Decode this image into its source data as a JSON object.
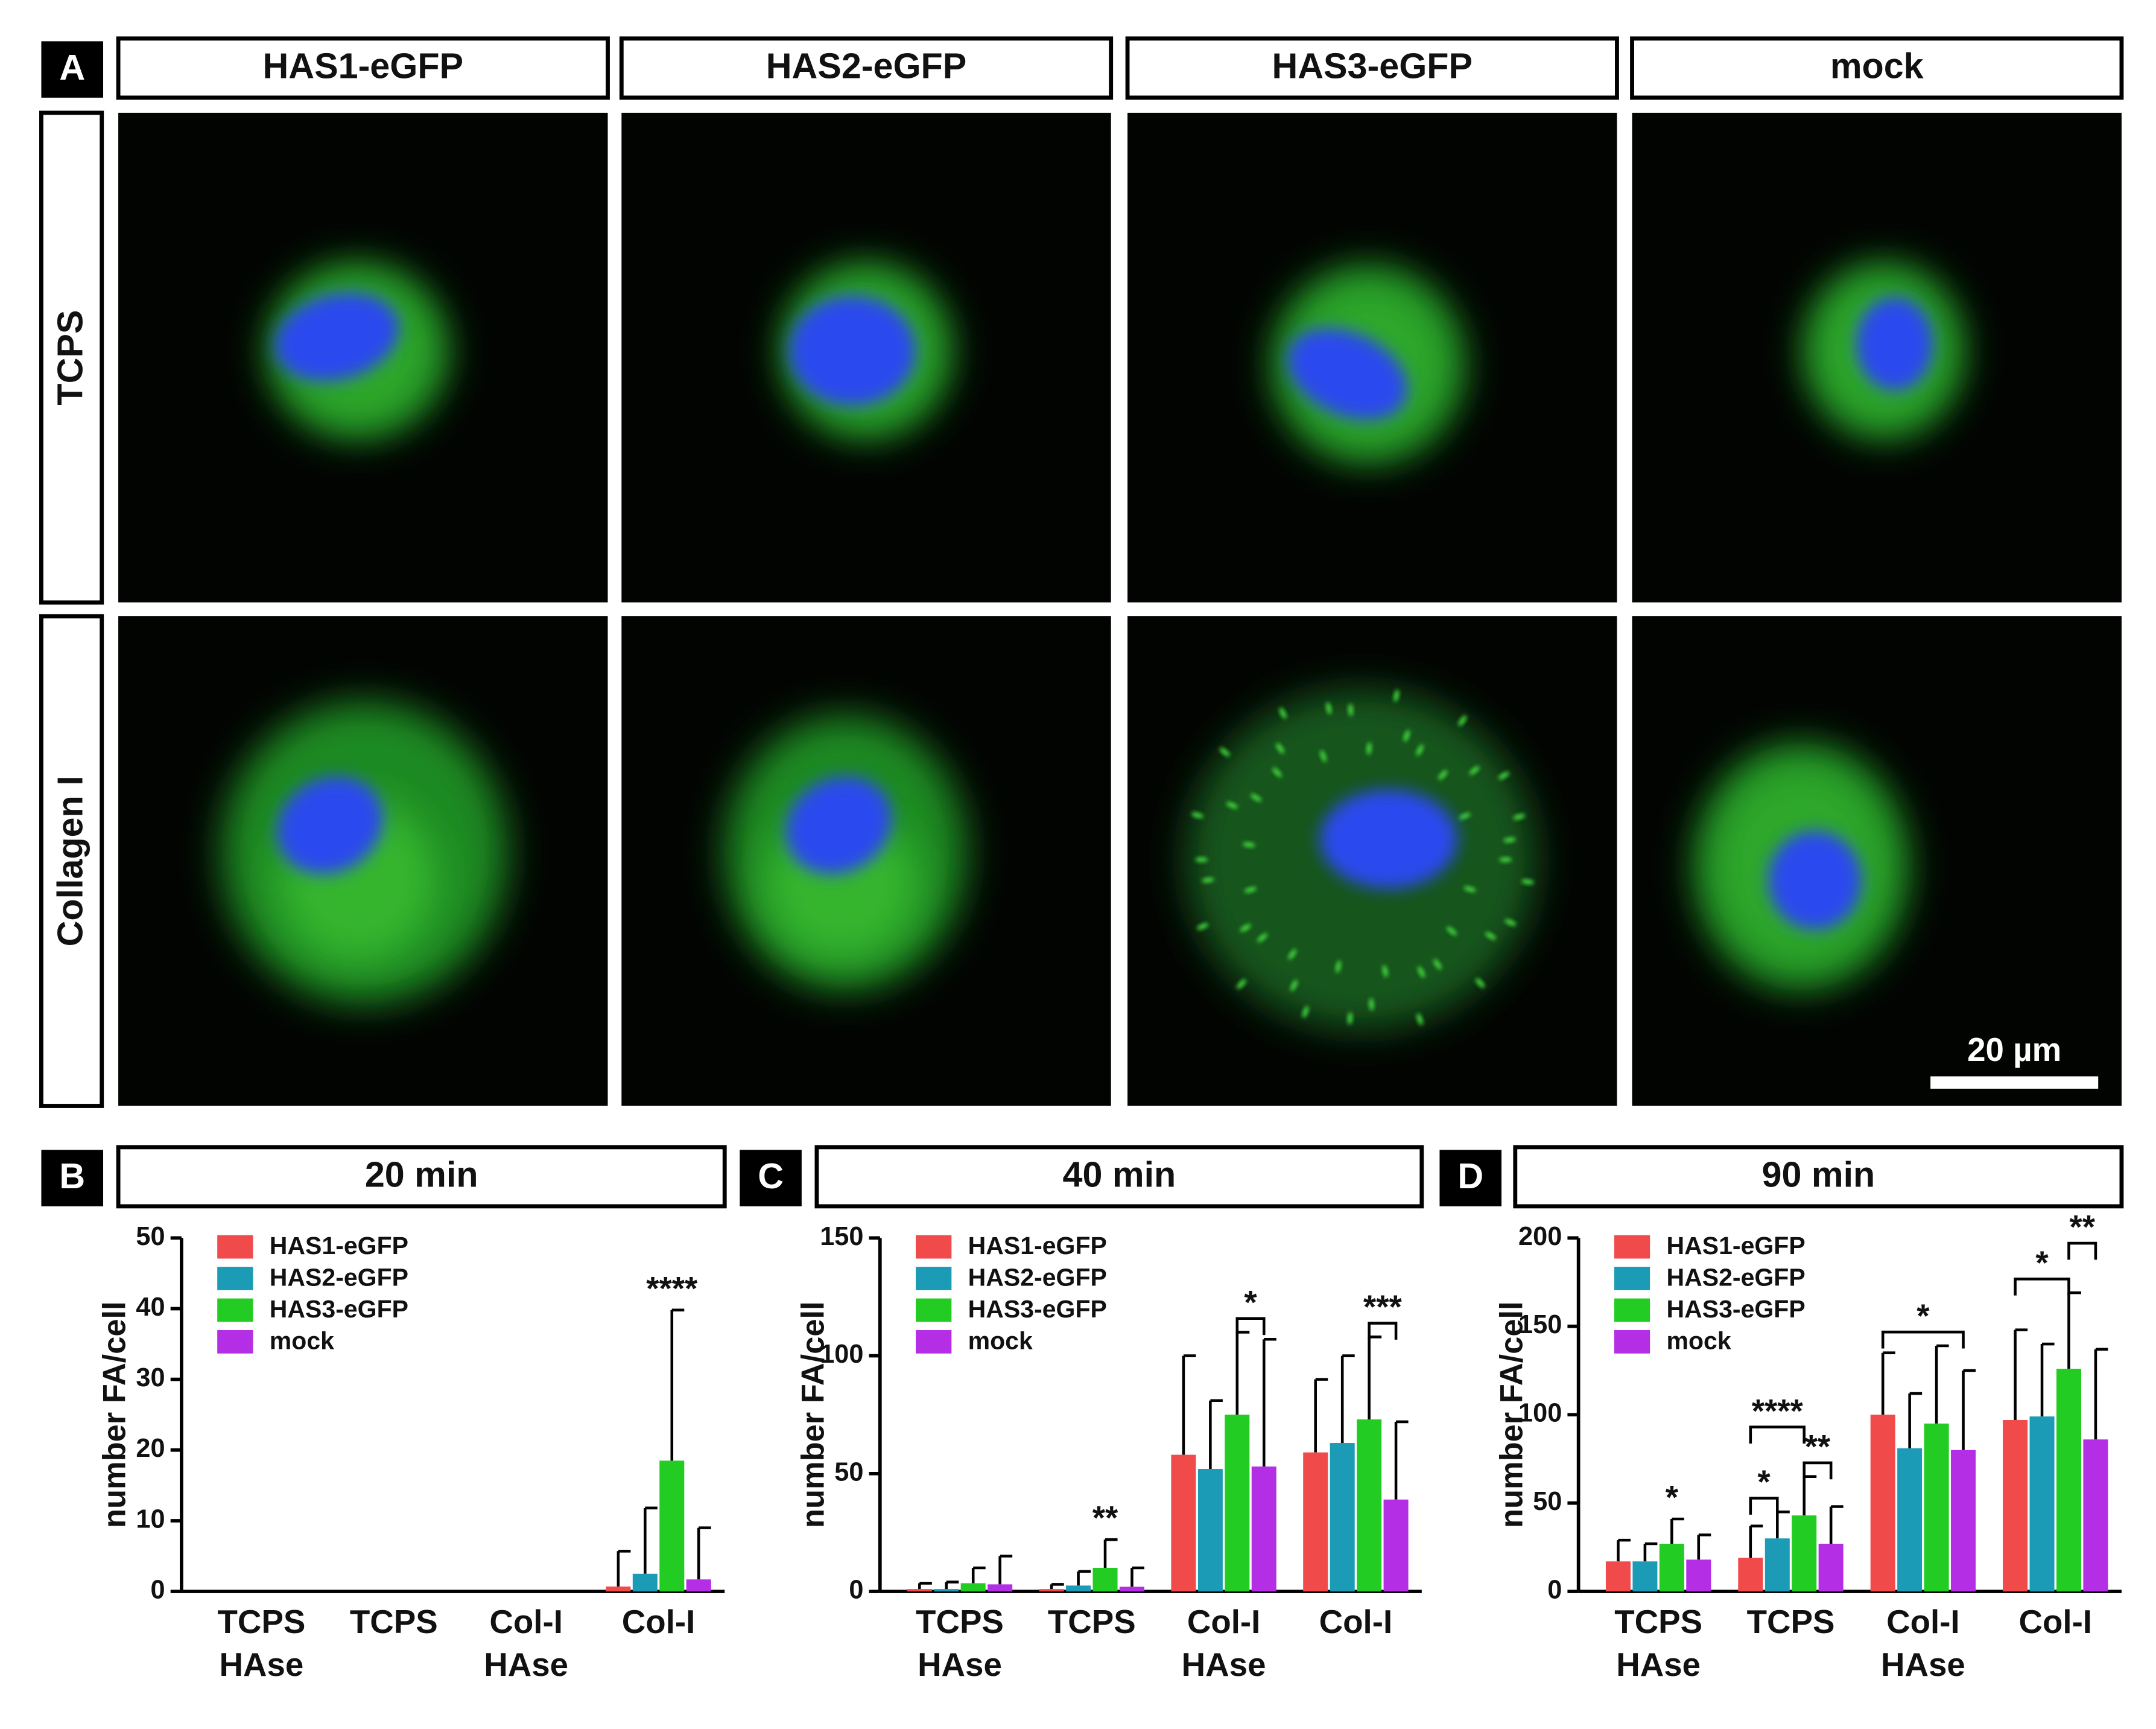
{
  "panel_a": {
    "label": "A",
    "columns": [
      "HAS1-eGFP",
      "HAS2-eGFP",
      "HAS3-eGFP",
      "mock"
    ],
    "rows": [
      "TCPS",
      "Collagen I"
    ],
    "scale_bar": "20 µm"
  },
  "chart_data": [
    {
      "type": "bar",
      "panel": "B",
      "title": "20 min",
      "y_label": "number FA/cell",
      "categories": [
        [
          "TCPS",
          "HAse"
        ],
        [
          "TCPS"
        ],
        [
          "Col-I",
          "HAse"
        ],
        [
          "Col-I"
        ]
      ],
      "ylim": [
        0,
        50
      ],
      "yticks": [
        0,
        10,
        20,
        30,
        40,
        50
      ],
      "series": [
        {
          "name": "HAS1-eGFP",
          "color": "#f04a4a",
          "values": [
            0,
            0,
            0,
            0.7
          ],
          "errors": [
            0,
            0,
            0,
            5
          ]
        },
        {
          "name": "HAS2-eGFP",
          "color": "#1b9bb5",
          "values": [
            0,
            0,
            0,
            2.5
          ],
          "errors": [
            0,
            0,
            0,
            9.3
          ]
        },
        {
          "name": "HAS3-eGFP",
          "color": "#22cc22",
          "values": [
            0,
            0,
            0,
            18.5
          ],
          "errors": [
            0,
            0,
            0,
            21.3
          ]
        },
        {
          "name": "mock",
          "color": "#b42ee6",
          "values": [
            0,
            0,
            0,
            1.7
          ],
          "errors": [
            0,
            0,
            0,
            7.3
          ]
        }
      ],
      "annotations": [
        {
          "text": "****",
          "category": 3,
          "from": 2,
          "to": 2
        }
      ]
    },
    {
      "type": "bar",
      "panel": "C",
      "title": "40 min",
      "y_label": "number FA/cell",
      "categories": [
        [
          "TCPS",
          "HAse"
        ],
        [
          "TCPS"
        ],
        [
          "Col-I",
          "HAse"
        ],
        [
          "Col-I"
        ]
      ],
      "ylim": [
        0,
        150
      ],
      "yticks": [
        0,
        50,
        100,
        150
      ],
      "series": [
        {
          "name": "HAS1-eGFP",
          "color": "#f04a4a",
          "values": [
            1,
            1,
            58,
            59
          ],
          "errors": [
            2.5,
            2,
            42,
            31
          ]
        },
        {
          "name": "HAS2-eGFP",
          "color": "#1b9bb5",
          "values": [
            1,
            2.5,
            52,
            63
          ],
          "errors": [
            3,
            6,
            29,
            37
          ]
        },
        {
          "name": "HAS3-eGFP",
          "color": "#22cc22",
          "values": [
            3.5,
            10,
            75,
            73
          ],
          "errors": [
            6.5,
            12,
            35,
            35
          ]
        },
        {
          "name": "mock",
          "color": "#b42ee6",
          "values": [
            3,
            2,
            53,
            39
          ],
          "errors": [
            12,
            8,
            54,
            33
          ]
        }
      ],
      "annotations": [
        {
          "text": "**",
          "category": 1,
          "from": 2,
          "to": 2
        },
        {
          "text": "*",
          "category": 2,
          "from": 2,
          "to": 3
        },
        {
          "text": "***",
          "category": 3,
          "from": 2,
          "to": 3
        }
      ]
    },
    {
      "type": "bar",
      "panel": "D",
      "title": "90 min",
      "y_label": "number FA/cell",
      "categories": [
        [
          "TCPS",
          "HAse"
        ],
        [
          "TCPS"
        ],
        [
          "Col-I",
          "HAse"
        ],
        [
          "Col-I"
        ]
      ],
      "ylim": [
        0,
        200
      ],
      "yticks": [
        0,
        50,
        100,
        150,
        200
      ],
      "series": [
        {
          "name": "HAS1-eGFP",
          "color": "#f04a4a",
          "values": [
            17,
            19,
            100,
            97
          ],
          "errors": [
            12,
            18,
            35,
            51
          ]
        },
        {
          "name": "HAS2-eGFP",
          "color": "#1b9bb5",
          "values": [
            17,
            30,
            81,
            99
          ],
          "errors": [
            10,
            15,
            31,
            41
          ]
        },
        {
          "name": "HAS3-eGFP",
          "color": "#22cc22",
          "values": [
            27,
            43,
            95,
            126
          ],
          "errors": [
            14,
            22,
            44,
            43
          ]
        },
        {
          "name": "mock",
          "color": "#b42ee6",
          "values": [
            18,
            27,
            80,
            86
          ],
          "errors": [
            14,
            21,
            45,
            51
          ]
        }
      ],
      "annotations": [
        {
          "text": "*",
          "category": 0,
          "from": 2,
          "to": 2
        },
        {
          "text": "*",
          "category": 1,
          "from": 0,
          "to": 1
        },
        {
          "text": "**",
          "category": 1,
          "from": 2,
          "to": 3
        },
        {
          "text": "****",
          "category": 1,
          "from": 0,
          "to": 2
        },
        {
          "text": "*",
          "category": 2,
          "from": 0,
          "to": 3
        },
        {
          "text": "*",
          "category": 3,
          "from": 0,
          "to": 2
        },
        {
          "text": "**",
          "category": 3,
          "from": 2,
          "to": 3
        }
      ]
    }
  ]
}
